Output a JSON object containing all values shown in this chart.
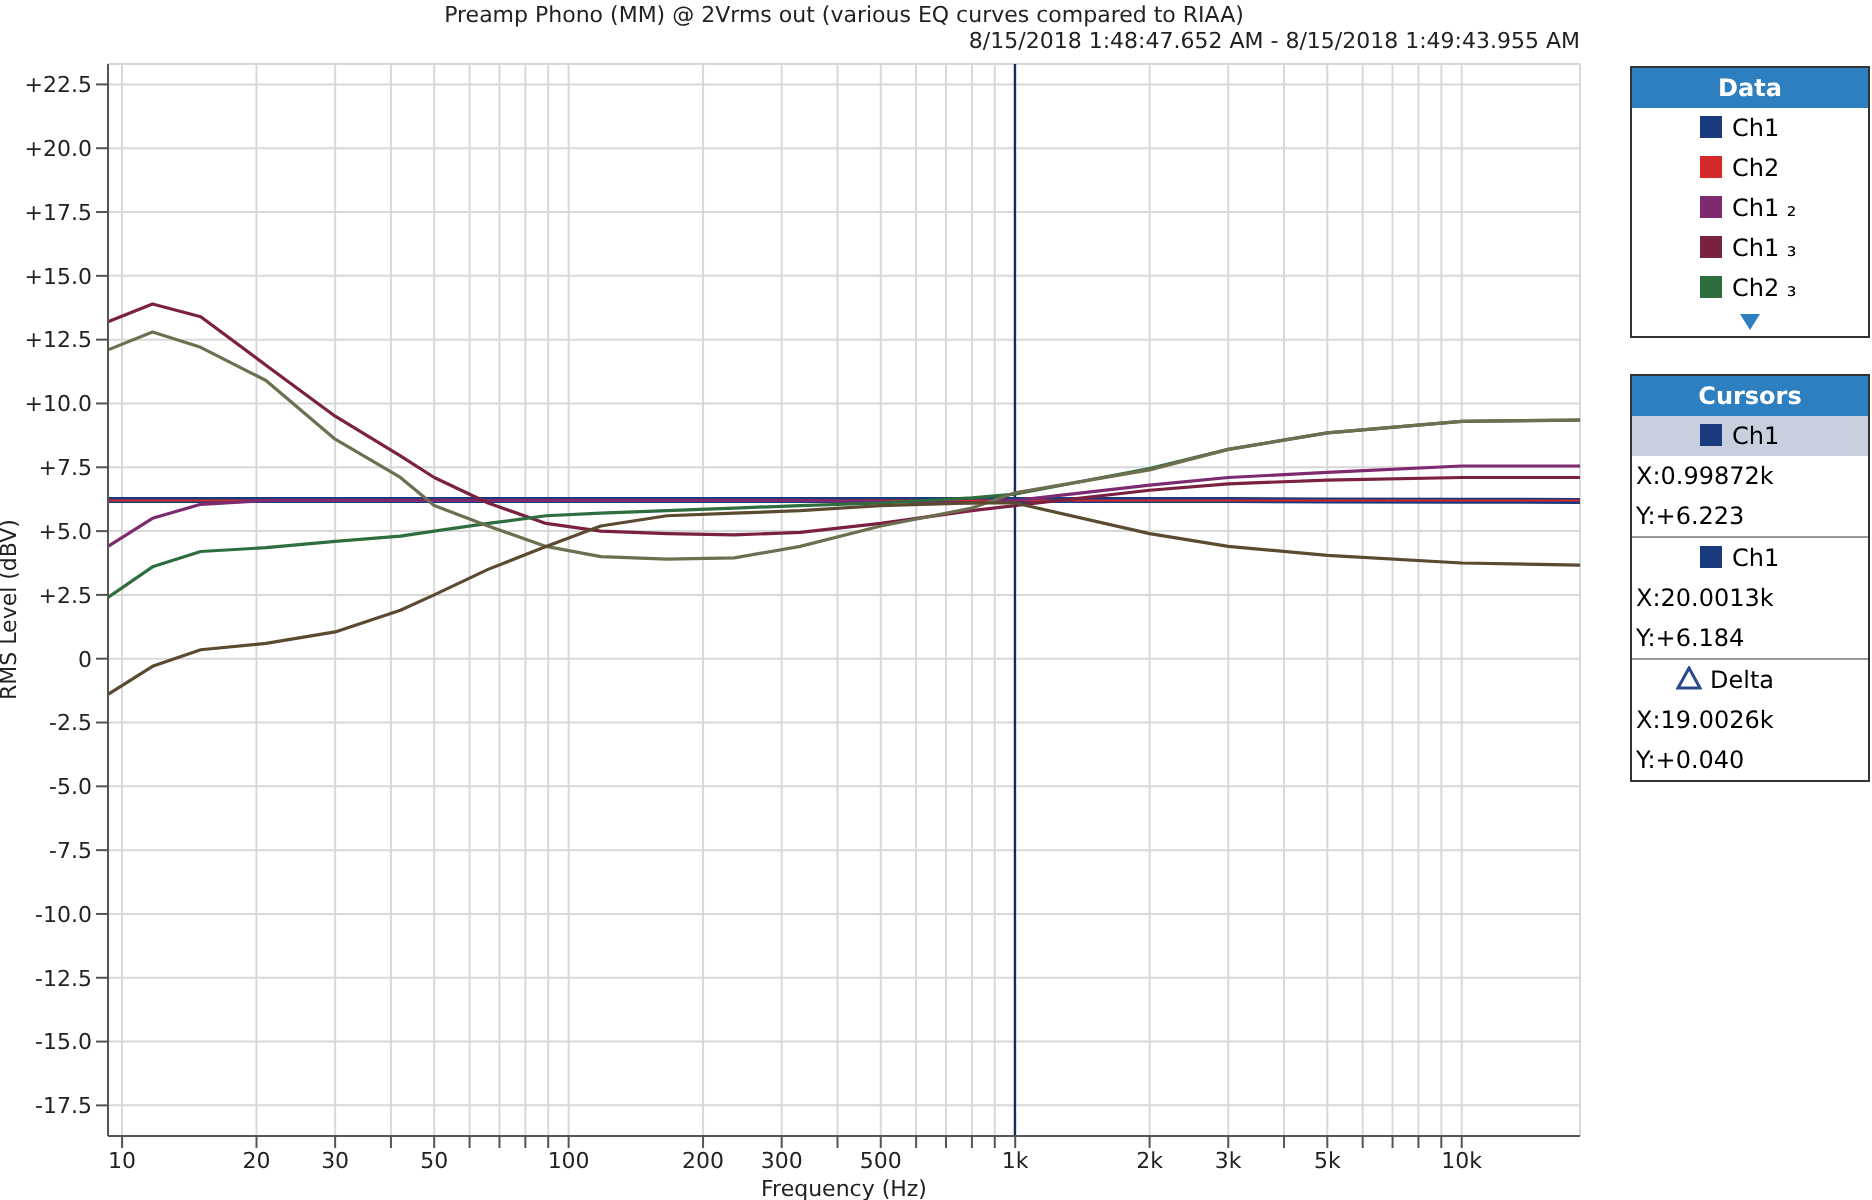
{
  "chart_data": {
    "type": "line",
    "title": "Preamp Phono (MM) @ 2Vrms out (various EQ curves compared to RIAA)",
    "subtitle": "8/15/2018 1:48:47.652 AM - 8/15/2018 1:49:43.955 AM",
    "xlabel": "Frequency (Hz)",
    "ylabel": "RMS Level (dBV)",
    "log": "x",
    "grid": true,
    "legend": "right",
    "legend_title": "Data",
    "x": [
      9.3,
      11.7,
      15,
      21,
      30,
      42,
      50,
      66,
      89,
      118,
      166,
      235,
      330,
      500,
      800,
      1000,
      2000,
      3000,
      5000,
      10000,
      18400
    ],
    "xlim": [
      9.3,
      18400
    ],
    "xticks": [
      10,
      20,
      30,
      {
        "value": 40,
        "label": null
      },
      50,
      {
        "value": 60,
        "label": null
      },
      {
        "value": 70,
        "label": null
      },
      {
        "value": 80,
        "label": null
      },
      {
        "value": 90,
        "label": null
      },
      100,
      200,
      300,
      {
        "value": 400,
        "label": null
      },
      500,
      {
        "value": 600,
        "label": null
      },
      {
        "value": 700,
        "label": null
      },
      {
        "value": 800,
        "label": null
      },
      {
        "value": 900,
        "label": null
      },
      {
        "value": 1000,
        "label": "1k"
      },
      {
        "value": 2000,
        "label": "2k"
      },
      {
        "value": 3000,
        "label": "3k"
      },
      {
        "value": 4000,
        "label": null
      },
      {
        "value": 5000,
        "label": "5k"
      },
      {
        "value": 6000,
        "label": null
      },
      {
        "value": 7000,
        "label": null
      },
      {
        "value": 8000,
        "label": null
      },
      {
        "value": 9000,
        "label": null
      },
      {
        "value": 10000,
        "label": "10k"
      }
    ],
    "ylim": [
      -18.7,
      23.3
    ],
    "yticks": [
      {
        "value": 22.5,
        "label": "+22.5"
      },
      {
        "value": 20,
        "label": "+20.0"
      },
      {
        "value": 17.5,
        "label": "+17.5"
      },
      {
        "value": 15,
        "label": "+15.0"
      },
      {
        "value": 12.5,
        "label": "+12.5"
      },
      {
        "value": 10,
        "label": "+10.0"
      },
      {
        "value": 7.5,
        "label": "+7.5"
      },
      {
        "value": 5,
        "label": "+5.0"
      },
      {
        "value": 2.5,
        "label": "+2.5"
      },
      0,
      -2.5,
      {
        "value": -5,
        "label": "-5.0"
      },
      -7.5,
      {
        "value": -10,
        "label": "-10.0"
      },
      -12.5,
      {
        "value": -15,
        "label": "-15.0"
      },
      -17.5
    ],
    "series": [
      {
        "name": "Ch1",
        "color": "#1a3a7e",
        "values": [
          6.22,
          6.22,
          6.22,
          6.22,
          6.22,
          6.22,
          6.22,
          6.22,
          6.22,
          6.22,
          6.22,
          6.22,
          6.22,
          6.22,
          6.22,
          6.22,
          6.22,
          6.22,
          6.2,
          6.19,
          6.18
        ]
      },
      {
        "name": "Ch2",
        "color": "#d42a2a",
        "values": [
          6.2,
          6.2,
          6.2,
          6.2,
          6.2,
          6.2,
          6.2,
          6.2,
          6.2,
          6.2,
          6.2,
          6.2,
          6.2,
          6.2,
          6.2,
          6.2,
          6.2,
          6.2,
          6.2,
          6.2,
          6.2
        ]
      },
      {
        "name": "Ch1 ₂",
        "color": "#7e2a70",
        "values": [
          4.4,
          5.5,
          6.05,
          6.2,
          6.2,
          6.2,
          6.2,
          6.2,
          6.2,
          6.2,
          6.2,
          6.2,
          6.2,
          6.15,
          6.1,
          6.2,
          6.8,
          7.1,
          7.3,
          7.55,
          7.55
        ]
      },
      {
        "name": "Ch1 ₃",
        "color": "#7a2040",
        "values": [
          13.2,
          13.9,
          13.4,
          11.5,
          9.5,
          7.95,
          7.1,
          6.1,
          5.3,
          5.0,
          4.9,
          4.85,
          4.95,
          5.3,
          5.8,
          6.0,
          6.6,
          6.85,
          7.0,
          7.1,
          7.1
        ]
      },
      {
        "name": "Ch2 ₃",
        "color": "#2e6e3e",
        "values": [
          2.4,
          3.6,
          4.2,
          4.35,
          4.6,
          4.8,
          5.0,
          5.3,
          5.6,
          5.7,
          5.8,
          5.9,
          6.0,
          6.1,
          6.3,
          6.45,
          7.45,
          8.2,
          8.85,
          9.3,
          9.35
        ]
      },
      {
        "color": "#6e6e50",
        "values": [
          12.1,
          12.8,
          12.2,
          10.9,
          8.6,
          7.1,
          6.0,
          5.2,
          4.4,
          4.0,
          3.9,
          3.95,
          4.4,
          5.2,
          5.9,
          6.5,
          7.4,
          8.2,
          8.85,
          9.3,
          9.35
        ]
      },
      {
        "color": "#5a4a30",
        "values": [
          -1.4,
          -0.3,
          0.35,
          0.6,
          1.05,
          1.9,
          2.5,
          3.5,
          4.4,
          5.2,
          5.6,
          5.7,
          5.8,
          6.0,
          6.1,
          6.1,
          4.9,
          4.4,
          4.05,
          3.75,
          3.67
        ]
      }
    ],
    "ref_lines": [
      {
        "axis": "x",
        "value": 998.72,
        "color": "#1a2a5a"
      }
    ],
    "annotations": [
      "Cursors",
      "Ch1",
      "X:0.99872k",
      "Y:+6.223",
      "Ch1",
      "X:20.0013k",
      "Y:+6.184",
      "Delta",
      "X:19.0026k",
      "Y:+0.040"
    ]
  }
}
